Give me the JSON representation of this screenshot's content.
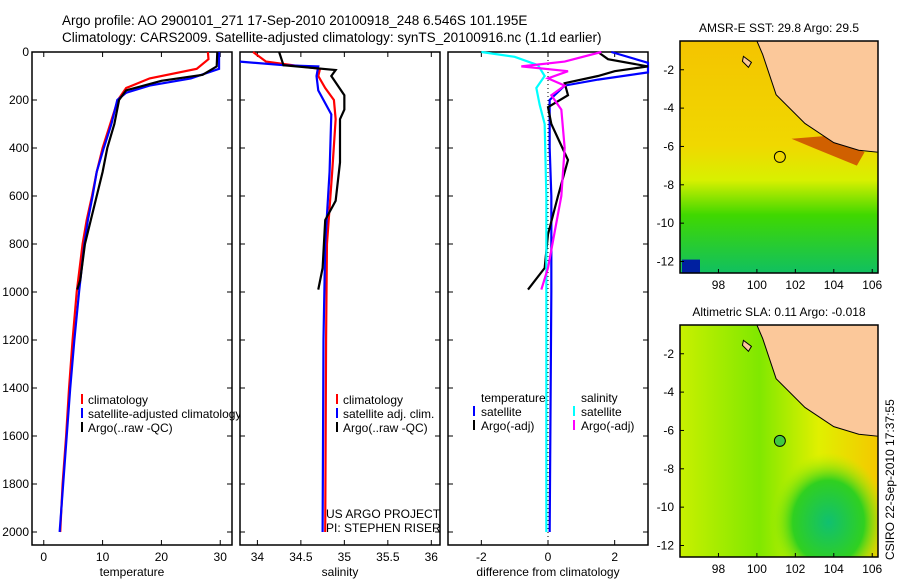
{
  "title_line1": "Argo profile: AO 2900101_271 17-Sep-2010 20100918_248 6.546S 101.195E",
  "title_line2": "Climatology: CARS2009. Satellite-adjusted climatology: synTS_20100916.nc (1.1d earlier)",
  "credit": "CSIRO 22-Sep-2010 17:37:55",
  "project_note": [
    "US ARGO PROJECT",
    "PI: STEPHEN RISER"
  ],
  "colors": {
    "red": "#ff0000",
    "blue": "#0000ff",
    "black": "#000000",
    "cyan": "#00ffff",
    "magenta": "#ff00ff",
    "land": "#fbc89a"
  },
  "chart_data": [
    {
      "type": "line",
      "xlabel": "temperature",
      "ylabel": "",
      "xlim": [
        -2,
        32
      ],
      "ylim": [
        2000,
        0
      ],
      "xticks": [
        0,
        10,
        20,
        30
      ],
      "yticks": [
        0,
        200,
        400,
        600,
        800,
        1000,
        1200,
        1400,
        1600,
        1800,
        2000
      ],
      "legend": [
        "climatology",
        "satellite-adjusted climatology",
        "Argo(..raw -QC)"
      ],
      "series": [
        {
          "name": "climatology",
          "color": "red",
          "points": [
            [
              27.9,
              0
            ],
            [
              28,
              30
            ],
            [
              26,
              70
            ],
            [
              18,
              110
            ],
            [
              14,
              150
            ],
            [
              12.6,
              200
            ],
            [
              11.3,
              300
            ],
            [
              10,
              400
            ],
            [
              9,
              500
            ],
            [
              8.2,
              600
            ],
            [
              7.3,
              700
            ],
            [
              6.6,
              800
            ],
            [
              5.6,
              1000
            ],
            [
              4.9,
              1200
            ],
            [
              4.3,
              1400
            ],
            [
              3.8,
              1600
            ],
            [
              3.2,
              1800
            ],
            [
              2.8,
              2000
            ]
          ]
        },
        {
          "name": "satellite-adjusted climatology",
          "color": "blue",
          "points": [
            [
              29.8,
              0
            ],
            [
              29.8,
              70
            ],
            [
              25,
              110
            ],
            [
              18,
              140
            ],
            [
              14,
              170
            ],
            [
              12.5,
              200
            ],
            [
              11.5,
              300
            ],
            [
              10.2,
              400
            ],
            [
              9,
              500
            ],
            [
              8.3,
              600
            ],
            [
              7.5,
              700
            ],
            [
              6.9,
              800
            ],
            [
              6,
              1000
            ],
            [
              5.2,
              1200
            ],
            [
              4.5,
              1400
            ],
            [
              3.9,
              1600
            ],
            [
              3.3,
              1800
            ],
            [
              2.7,
              2000
            ]
          ]
        },
        {
          "name": "Argo(..raw -QC)",
          "color": "black",
          "points": [
            [
              29.5,
              0
            ],
            [
              29.4,
              60
            ],
            [
              27,
              95
            ],
            [
              20,
              120
            ],
            [
              14,
              160
            ],
            [
              12.8,
              200
            ],
            [
              12,
              300
            ],
            [
              10.8,
              400
            ],
            [
              10,
              500
            ],
            [
              9,
              600
            ],
            [
              8,
              700
            ],
            [
              7,
              800
            ],
            [
              6.2,
              950
            ],
            [
              5.7,
              990
            ]
          ]
        }
      ]
    },
    {
      "type": "line",
      "xlabel": "salinity",
      "xlim": [
        33.8,
        36.1
      ],
      "ylim": [
        2000,
        0
      ],
      "xticks": [
        34,
        34.5,
        35,
        35.5,
        36
      ],
      "legend": [
        "climatology",
        "satellite adj. clim.",
        "Argo(..raw -QC)"
      ],
      "series": [
        {
          "name": "climatology",
          "color": "red",
          "points": [
            [
              33.95,
              0
            ],
            [
              34.1,
              40
            ],
            [
              34.5,
              60
            ],
            [
              34.72,
              70
            ],
            [
              34.7,
              100
            ],
            [
              34.78,
              150
            ],
            [
              34.88,
              200
            ],
            [
              34.9,
              280
            ],
            [
              34.86,
              500
            ],
            [
              34.8,
              800
            ],
            [
              34.79,
              1200
            ],
            [
              34.78,
              2000
            ]
          ]
        },
        {
          "name": "satellite adj. clim.",
          "color": "blue",
          "points": [
            [
              33.8,
              40
            ],
            [
              34.3,
              55
            ],
            [
              34.7,
              60
            ],
            [
              34.68,
              100
            ],
            [
              34.7,
              160
            ],
            [
              34.85,
              260
            ],
            [
              34.83,
              500
            ],
            [
              34.78,
              800
            ],
            [
              34.76,
              1200
            ],
            [
              34.75,
              2000
            ]
          ]
        },
        {
          "name": "Argo(..raw -QC)",
          "color": "black",
          "points": [
            [
              34.25,
              0
            ],
            [
              34.3,
              55
            ],
            [
              34.9,
              75
            ],
            [
              34.85,
              100
            ],
            [
              35.0,
              180
            ],
            [
              35.0,
              240
            ],
            [
              34.95,
              280
            ],
            [
              34.95,
              460
            ],
            [
              34.9,
              620
            ],
            [
              34.78,
              700
            ],
            [
              34.75,
              900
            ],
            [
              34.7,
              990
            ]
          ]
        }
      ]
    },
    {
      "type": "line",
      "xlabel": "difference from climatology",
      "xlim": [
        -3,
        3
      ],
      "ylim": [
        2000,
        0
      ],
      "xticks": [
        -2,
        0,
        2
      ],
      "legend_groups": [
        {
          "title": "temperature",
          "items": [
            {
              "label": "satellite",
              "color": "blue"
            },
            {
              "label": "Argo(-adj)",
              "color": "black"
            }
          ]
        },
        {
          "title": "salinity",
          "items": [
            {
              "label": "satellite",
              "color": "cyan"
            },
            {
              "label": "Argo(-adj)",
              "color": "magenta"
            }
          ]
        }
      ],
      "series": [
        {
          "name": "temperature satellite",
          "color": "blue",
          "points": [
            [
              1.9,
              0
            ],
            [
              3,
              45
            ],
            [
              3,
              85
            ],
            [
              1.5,
              115
            ],
            [
              0.5,
              140
            ],
            [
              0.05,
              200
            ],
            [
              0.05,
              400
            ],
            [
              0.1,
              600
            ],
            [
              0.1,
              1000
            ],
            [
              0.05,
              2000
            ]
          ]
        },
        {
          "name": "temperature Argo(-adj)",
          "color": "black",
          "points": [
            [
              1.5,
              0
            ],
            [
              1.8,
              30
            ],
            [
              3,
              60
            ],
            [
              2,
              80
            ],
            [
              1.5,
              100
            ],
            [
              0.5,
              130
            ],
            [
              0.6,
              180
            ],
            [
              0,
              230
            ],
            [
              0.1,
              300
            ],
            [
              0.6,
              450
            ],
            [
              0.3,
              600
            ],
            [
              0,
              760
            ],
            [
              -0.1,
              900
            ],
            [
              -0.6,
              990
            ]
          ]
        },
        {
          "name": "salinity satellite",
          "color": "cyan",
          "points": [
            [
              -2,
              0
            ],
            [
              -1,
              20
            ],
            [
              -0.3,
              55
            ],
            [
              -0.1,
              100
            ],
            [
              -0.35,
              150
            ],
            [
              -0.25,
              220
            ],
            [
              -0.1,
              300
            ],
            [
              -0.05,
              600
            ],
            [
              -0.05,
              2000
            ]
          ]
        },
        {
          "name": "salinity Argo(-adj)",
          "color": "magenta",
          "points": [
            [
              1.6,
              0
            ],
            [
              0.5,
              40
            ],
            [
              -0.8,
              60
            ],
            [
              0.6,
              80
            ],
            [
              0,
              110
            ],
            [
              0.5,
              140
            ],
            [
              0.1,
              180
            ],
            [
              0.4,
              240
            ],
            [
              0.5,
              400
            ],
            [
              0.4,
              600
            ],
            [
              0,
              900
            ],
            [
              -0.2,
              990
            ]
          ]
        }
      ]
    },
    {
      "type": "heatmap",
      "title": "AMSR-E SST: 29.8 Argo: 29.5",
      "xlim": [
        96,
        106.3
      ],
      "ylim": [
        -12.6,
        -0.5
      ],
      "xticks": [
        98,
        100,
        102,
        104,
        106
      ],
      "yticks": [
        -2,
        -4,
        -6,
        -8,
        -10,
        -12
      ],
      "marker": {
        "lon": 101.195,
        "lat": -6.546
      }
    },
    {
      "type": "heatmap",
      "title": "Altimetric SLA: 0.11 Argo: -0.018",
      "xlim": [
        96,
        106.3
      ],
      "ylim": [
        -12.6,
        -0.5
      ],
      "xticks": [
        98,
        100,
        102,
        104,
        106
      ],
      "yticks": [
        -2,
        -4,
        -6,
        -8,
        -10,
        -12
      ],
      "marker": {
        "lon": 101.195,
        "lat": -6.546
      }
    }
  ]
}
